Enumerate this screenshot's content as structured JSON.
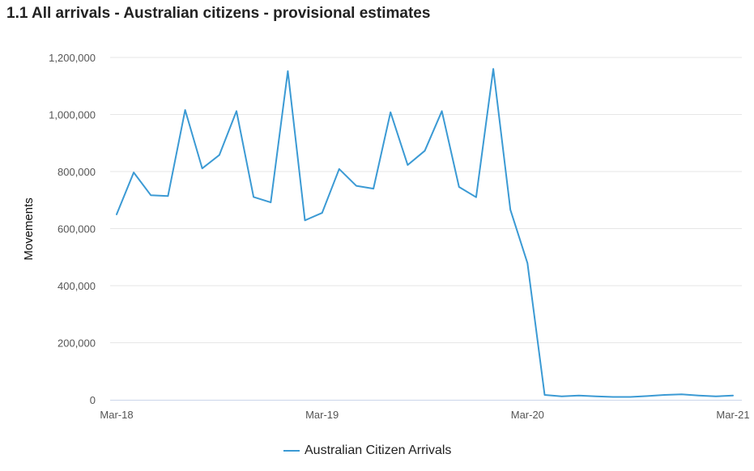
{
  "chart_data": {
    "type": "line",
    "title": "1.1 All arrivals - Australian citizens - provisional estimates",
    "ylabel": "Movements",
    "xlabel": "",
    "ylim": [
      0,
      1200000
    ],
    "yticks": [
      0,
      200000,
      400000,
      600000,
      800000,
      1000000,
      1200000
    ],
    "ytick_labels": [
      "0",
      "200,000",
      "400,000",
      "600,000",
      "800,000",
      "1,000,000",
      "1,200,000"
    ],
    "xtick_labels": [
      "Mar-18",
      "Mar-19",
      "Mar-20",
      "Mar-21"
    ],
    "x": [
      "Mar-18",
      "Apr-18",
      "May-18",
      "Jun-18",
      "Jul-18",
      "Aug-18",
      "Sep-18",
      "Oct-18",
      "Nov-18",
      "Dec-18",
      "Jan-19",
      "Feb-19",
      "Mar-19",
      "Apr-19",
      "May-19",
      "Jun-19",
      "Jul-19",
      "Aug-19",
      "Sep-19",
      "Oct-19",
      "Nov-19",
      "Dec-19",
      "Jan-20",
      "Feb-20",
      "Mar-20",
      "Apr-20",
      "May-20",
      "Jun-20",
      "Jul-20",
      "Aug-20",
      "Sep-20",
      "Oct-20",
      "Nov-20",
      "Dec-20",
      "Jan-21",
      "Feb-21",
      "Mar-21"
    ],
    "grid": true,
    "legend_position": "bottom-center",
    "series": [
      {
        "name": "Australian Citizen Arrivals",
        "color": "#3b9ad4",
        "values": [
          650000,
          797000,
          717000,
          714000,
          1016000,
          811000,
          858000,
          1012000,
          711000,
          692000,
          1152000,
          629000,
          655000,
          809000,
          750000,
          740000,
          1008000,
          823000,
          873000,
          1012000,
          746000,
          710000,
          1160000,
          666000,
          479000,
          17000,
          12000,
          15000,
          12000,
          10000,
          10000,
          13000,
          17000,
          19000,
          15000,
          12000,
          15000
        ]
      }
    ]
  }
}
